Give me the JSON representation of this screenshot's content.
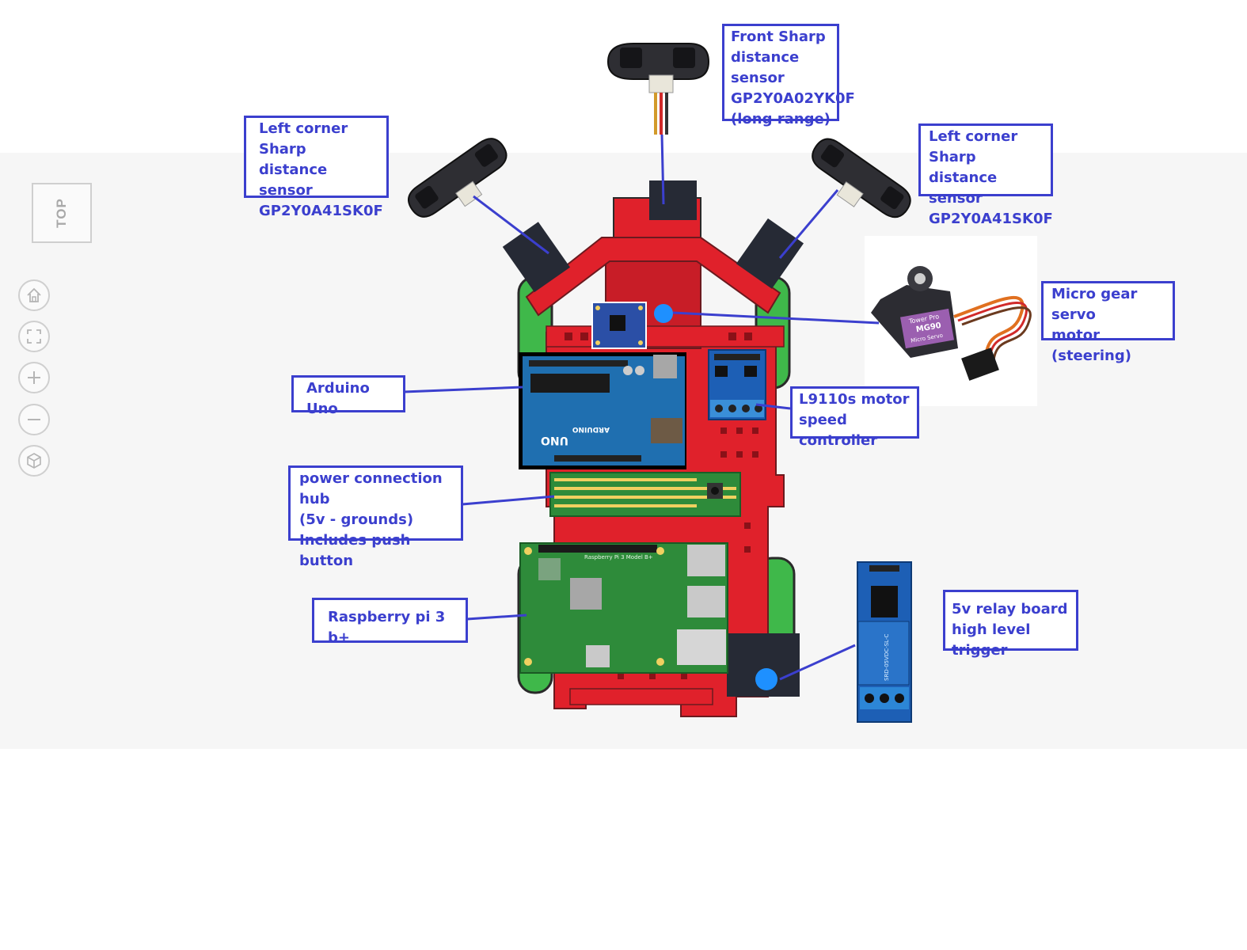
{
  "viewer": {
    "view_cube_label": "TOP",
    "nav_buttons": [
      {
        "icon": "home-icon"
      },
      {
        "icon": "fit-screen-icon"
      },
      {
        "icon": "zoom-in-icon"
      },
      {
        "icon": "zoom-out-icon"
      },
      {
        "icon": "3d-view-icon"
      }
    ]
  },
  "labels": {
    "front_sensor": "Front Sharp\ndistance sensor\nGP2Y0A02YK0F\n(long range)",
    "left_sensor": "Left corner Sharp\ndistance sensor\nGP2Y0A41SK0F",
    "right_sensor": "Left corner Sharp\ndistance sensor\nGP2Y0A41SK0F",
    "servo": "Micro gear servo\nmotor (steering)",
    "arduino": "Arduino Uno",
    "motor_controller": "L9110s motor\nspeed controller",
    "power_hub": "power connection hub\n(5v - grounds)\nIncludes push button",
    "raspberry": "Raspberry pi 3 b+",
    "relay": "5v relay board\nhigh level trigger"
  },
  "component_text": {
    "arduino_brand": "ARDUINO",
    "arduino_model": "UNO",
    "servo_brand": "Tower Pro",
    "servo_model": "MG90",
    "servo_sub": "Micro Servo",
    "relay_model": "SRD-05VDC-SL-C",
    "pi_text": "Raspberry Pi 3 Model B+"
  },
  "colors": {
    "label_blue": "#3b3fce",
    "chassis_red": "#e0212b",
    "wheel_green": "#3fb84a",
    "pcb_blue": "#1f6fb0",
    "pcb_green": "#2e8b3a"
  }
}
